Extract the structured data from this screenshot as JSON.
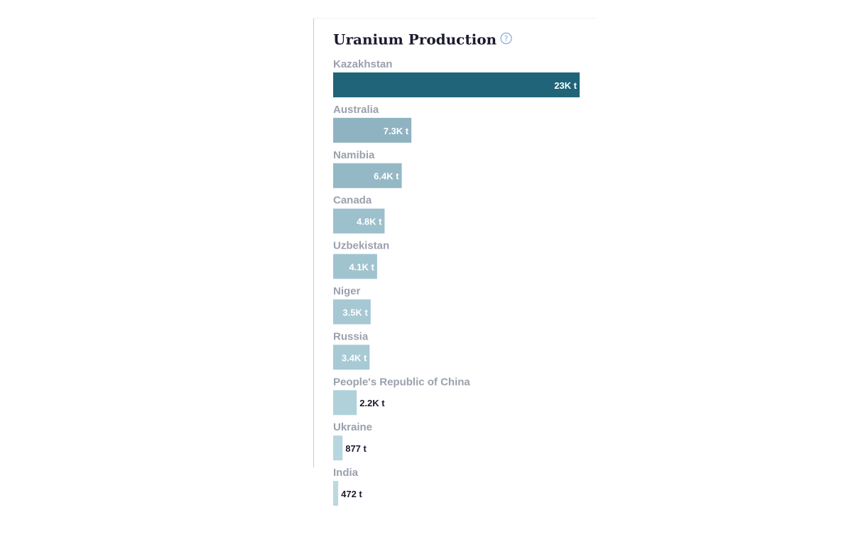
{
  "chart_data": {
    "type": "bar",
    "orientation": "horizontal",
    "title": "Uranium Production",
    "help_icon": "?",
    "categories": [
      "Kazakhstan",
      "Australia",
      "Namibia",
      "Canada",
      "Uzbekistan",
      "Niger",
      "Russia",
      "People's Republic of China",
      "Ukraine",
      "India"
    ],
    "values": [
      23000,
      7300,
      6400,
      4800,
      4100,
      3500,
      3400,
      2200,
      877,
      472
    ],
    "value_labels": [
      "23K t",
      "7.3K t",
      "6.4K t",
      "4.8K t",
      "4.1K t",
      "3.5K t",
      "3.4K t",
      "2.2K t",
      "877 t",
      "472 t"
    ],
    "colors": [
      "#1f6479",
      "#8fb3c1",
      "#94b8c5",
      "#9cc0cc",
      "#a0c4cf",
      "#a5c8d3",
      "#a7cad4",
      "#b0d1da",
      "#b8d6df",
      "#bcd9e2"
    ]
  }
}
